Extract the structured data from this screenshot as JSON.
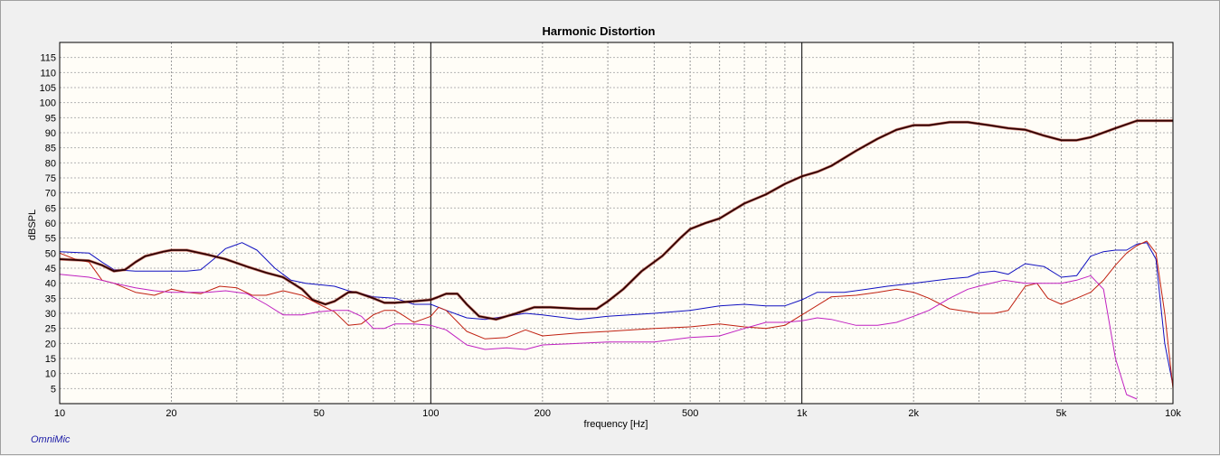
{
  "app": {
    "brand": "OmniMic"
  },
  "chart_data": {
    "type": "line",
    "title": "Harmonic Distortion",
    "xlabel": "frequency [Hz]",
    "ylabel": "dBSPL",
    "x_scale": "log",
    "xlim": [
      10,
      10000
    ],
    "ylim": [
      0,
      120
    ],
    "grid": true,
    "plot_background": "#fffdf7",
    "x_tick_labels": [
      {
        "value": 10,
        "label": "10"
      },
      {
        "value": 20,
        "label": "20"
      },
      {
        "value": 50,
        "label": "50"
      },
      {
        "value": 100,
        "label": "100"
      },
      {
        "value": 200,
        "label": "200"
      },
      {
        "value": 500,
        "label": "500"
      },
      {
        "value": 1000,
        "label": "1k"
      },
      {
        "value": 2000,
        "label": "2k"
      },
      {
        "value": 5000,
        "label": "5k"
      },
      {
        "value": 10000,
        "label": "10k"
      }
    ],
    "y_ticks": [
      5,
      10,
      15,
      20,
      25,
      30,
      35,
      40,
      45,
      50,
      55,
      60,
      65,
      70,
      75,
      80,
      85,
      90,
      95,
      100,
      105,
      110,
      115
    ],
    "series": [
      {
        "color": "#1010c0",
        "points": [
          [
            10,
            50.5
          ],
          [
            12,
            50
          ],
          [
            13,
            47
          ],
          [
            14,
            44.5
          ],
          [
            16,
            44
          ],
          [
            18,
            44
          ],
          [
            20,
            44
          ],
          [
            22,
            44
          ],
          [
            24,
            44.5
          ],
          [
            26,
            48
          ],
          [
            28,
            51.5
          ],
          [
            31,
            53.5
          ],
          [
            34,
            51
          ],
          [
            38,
            45
          ],
          [
            42,
            41
          ],
          [
            46,
            40
          ],
          [
            50,
            39.5
          ],
          [
            55,
            39
          ],
          [
            60,
            37.5
          ],
          [
            65,
            36.5
          ],
          [
            70,
            35.5
          ],
          [
            80,
            35
          ],
          [
            90,
            33
          ],
          [
            100,
            33
          ],
          [
            110,
            31
          ],
          [
            125,
            28.5
          ],
          [
            140,
            28
          ],
          [
            160,
            29
          ],
          [
            180,
            30
          ],
          [
            200,
            29.5
          ],
          [
            250,
            28
          ],
          [
            300,
            29
          ],
          [
            400,
            30
          ],
          [
            500,
            31
          ],
          [
            600,
            32.5
          ],
          [
            700,
            33
          ],
          [
            800,
            32.5
          ],
          [
            900,
            32.5
          ],
          [
            1000,
            34.5
          ],
          [
            1100,
            37
          ],
          [
            1300,
            37
          ],
          [
            1500,
            38
          ],
          [
            1700,
            39
          ],
          [
            2000,
            40
          ],
          [
            2500,
            41.5
          ],
          [
            2800,
            42
          ],
          [
            3000,
            43.5
          ],
          [
            3300,
            44
          ],
          [
            3600,
            43
          ],
          [
            4000,
            46.5
          ],
          [
            4500,
            45.5
          ],
          [
            5000,
            42
          ],
          [
            5500,
            42.5
          ],
          [
            6000,
            49
          ],
          [
            6500,
            50.5
          ],
          [
            7000,
            51
          ],
          [
            7500,
            51
          ],
          [
            8000,
            53
          ],
          [
            8500,
            53.5
          ],
          [
            9000,
            48
          ],
          [
            9500,
            20
          ],
          [
            10000,
            6
          ]
        ]
      },
      {
        "color": "#c02010",
        "points": [
          [
            10,
            50
          ],
          [
            11,
            48
          ],
          [
            12,
            47
          ],
          [
            13,
            41
          ],
          [
            14,
            40
          ],
          [
            16,
            37
          ],
          [
            18,
            36
          ],
          [
            20,
            38
          ],
          [
            22,
            37
          ],
          [
            24,
            36.5
          ],
          [
            27,
            39
          ],
          [
            30,
            38.5
          ],
          [
            33,
            36
          ],
          [
            36,
            36
          ],
          [
            40,
            37.5
          ],
          [
            45,
            36
          ],
          [
            50,
            33
          ],
          [
            55,
            30.5
          ],
          [
            60,
            26
          ],
          [
            65,
            26.5
          ],
          [
            70,
            29.5
          ],
          [
            75,
            31
          ],
          [
            80,
            31
          ],
          [
            85,
            29
          ],
          [
            90,
            27
          ],
          [
            95,
            28
          ],
          [
            100,
            29
          ],
          [
            105,
            32
          ],
          [
            110,
            31
          ],
          [
            125,
            24
          ],
          [
            140,
            21.5
          ],
          [
            160,
            22
          ],
          [
            180,
            24.5
          ],
          [
            200,
            22.5
          ],
          [
            250,
            23.5
          ],
          [
            300,
            24
          ],
          [
            400,
            25
          ],
          [
            500,
            25.5
          ],
          [
            600,
            26.5
          ],
          [
            700,
            25.5
          ],
          [
            800,
            25
          ],
          [
            900,
            26
          ],
          [
            1000,
            29.5
          ],
          [
            1200,
            35.5
          ],
          [
            1400,
            36
          ],
          [
            1600,
            37
          ],
          [
            1800,
            38
          ],
          [
            2000,
            37
          ],
          [
            2200,
            35
          ],
          [
            2500,
            31.5
          ],
          [
            3000,
            30
          ],
          [
            3300,
            30
          ],
          [
            3600,
            31
          ],
          [
            4000,
            39
          ],
          [
            4300,
            40
          ],
          [
            4600,
            35
          ],
          [
            5000,
            33
          ],
          [
            5500,
            35
          ],
          [
            6000,
            37
          ],
          [
            6500,
            41
          ],
          [
            7000,
            46
          ],
          [
            7500,
            50
          ],
          [
            8000,
            52.5
          ],
          [
            8500,
            54
          ],
          [
            9000,
            50
          ],
          [
            9500,
            30
          ],
          [
            10000,
            5
          ]
        ]
      },
      {
        "color": "#c020c0",
        "points": [
          [
            10,
            43
          ],
          [
            12,
            42
          ],
          [
            14,
            40
          ],
          [
            16,
            38.5
          ],
          [
            18,
            37.5
          ],
          [
            20,
            37
          ],
          [
            22,
            37
          ],
          [
            25,
            37
          ],
          [
            28,
            37.5
          ],
          [
            32,
            36.5
          ],
          [
            36,
            33
          ],
          [
            40,
            29.5
          ],
          [
            45,
            29.5
          ],
          [
            50,
            30.5
          ],
          [
            55,
            31
          ],
          [
            60,
            31
          ],
          [
            65,
            29
          ],
          [
            70,
            25
          ],
          [
            75,
            25
          ],
          [
            80,
            26.5
          ],
          [
            90,
            26.5
          ],
          [
            100,
            26
          ],
          [
            110,
            24.5
          ],
          [
            125,
            19.5
          ],
          [
            140,
            18
          ],
          [
            160,
            18.5
          ],
          [
            180,
            18
          ],
          [
            200,
            19.5
          ],
          [
            250,
            20
          ],
          [
            300,
            20.5
          ],
          [
            400,
            20.5
          ],
          [
            500,
            22
          ],
          [
            600,
            22.5
          ],
          [
            700,
            25
          ],
          [
            800,
            27
          ],
          [
            900,
            27
          ],
          [
            1000,
            27.5
          ],
          [
            1100,
            28.5
          ],
          [
            1200,
            28
          ],
          [
            1400,
            26
          ],
          [
            1600,
            26
          ],
          [
            1800,
            27
          ],
          [
            2000,
            29
          ],
          [
            2200,
            31
          ],
          [
            2500,
            35
          ],
          [
            2800,
            38
          ],
          [
            3000,
            39
          ],
          [
            3500,
            41
          ],
          [
            4000,
            40
          ],
          [
            4500,
            40
          ],
          [
            5000,
            40
          ],
          [
            5500,
            41
          ],
          [
            6000,
            42.5
          ],
          [
            6500,
            38
          ],
          [
            7000,
            15
          ],
          [
            7500,
            3
          ],
          [
            8000,
            1.5
          ]
        ]
      },
      {
        "color": "#300000",
        "points": [
          [
            10,
            48
          ],
          [
            12,
            47.5
          ],
          [
            13,
            46
          ],
          [
            14,
            44
          ],
          [
            15,
            44.5
          ],
          [
            16,
            47
          ],
          [
            17,
            49
          ],
          [
            19,
            50.5
          ],
          [
            20,
            51
          ],
          [
            22,
            51
          ],
          [
            25,
            49.5
          ],
          [
            28,
            48
          ],
          [
            32,
            45.5
          ],
          [
            36,
            43.5
          ],
          [
            40,
            42
          ],
          [
            45,
            38
          ],
          [
            48,
            34.5
          ],
          [
            52,
            33
          ],
          [
            55,
            34
          ],
          [
            60,
            37
          ],
          [
            63,
            37
          ],
          [
            70,
            35
          ],
          [
            75,
            33.5
          ],
          [
            80,
            33.5
          ],
          [
            90,
            34
          ],
          [
            100,
            34.5
          ],
          [
            105,
            35.5
          ],
          [
            110,
            36.5
          ],
          [
            118,
            36.5
          ],
          [
            125,
            33
          ],
          [
            135,
            29
          ],
          [
            150,
            28
          ],
          [
            170,
            30
          ],
          [
            190,
            32
          ],
          [
            210,
            32
          ],
          [
            250,
            31.5
          ],
          [
            280,
            31.5
          ],
          [
            300,
            34
          ],
          [
            330,
            38
          ],
          [
            370,
            44
          ],
          [
            420,
            49
          ],
          [
            470,
            55
          ],
          [
            500,
            58
          ],
          [
            550,
            60
          ],
          [
            600,
            61.5
          ],
          [
            700,
            66.5
          ],
          [
            800,
            69.5
          ],
          [
            900,
            73
          ],
          [
            1000,
            75.5
          ],
          [
            1100,
            77
          ],
          [
            1200,
            79
          ],
          [
            1400,
            84
          ],
          [
            1600,
            88
          ],
          [
            1800,
            91
          ],
          [
            2000,
            92.5
          ],
          [
            2200,
            92.5
          ],
          [
            2500,
            93.5
          ],
          [
            2800,
            93.5
          ],
          [
            3200,
            92.5
          ],
          [
            3600,
            91.5
          ],
          [
            4000,
            91
          ],
          [
            4500,
            89
          ],
          [
            5000,
            87.5
          ],
          [
            5500,
            87.5
          ],
          [
            6000,
            88.5
          ],
          [
            7000,
            91.5
          ],
          [
            8000,
            94
          ],
          [
            9000,
            94
          ],
          [
            10000,
            94
          ]
        ]
      }
    ]
  }
}
